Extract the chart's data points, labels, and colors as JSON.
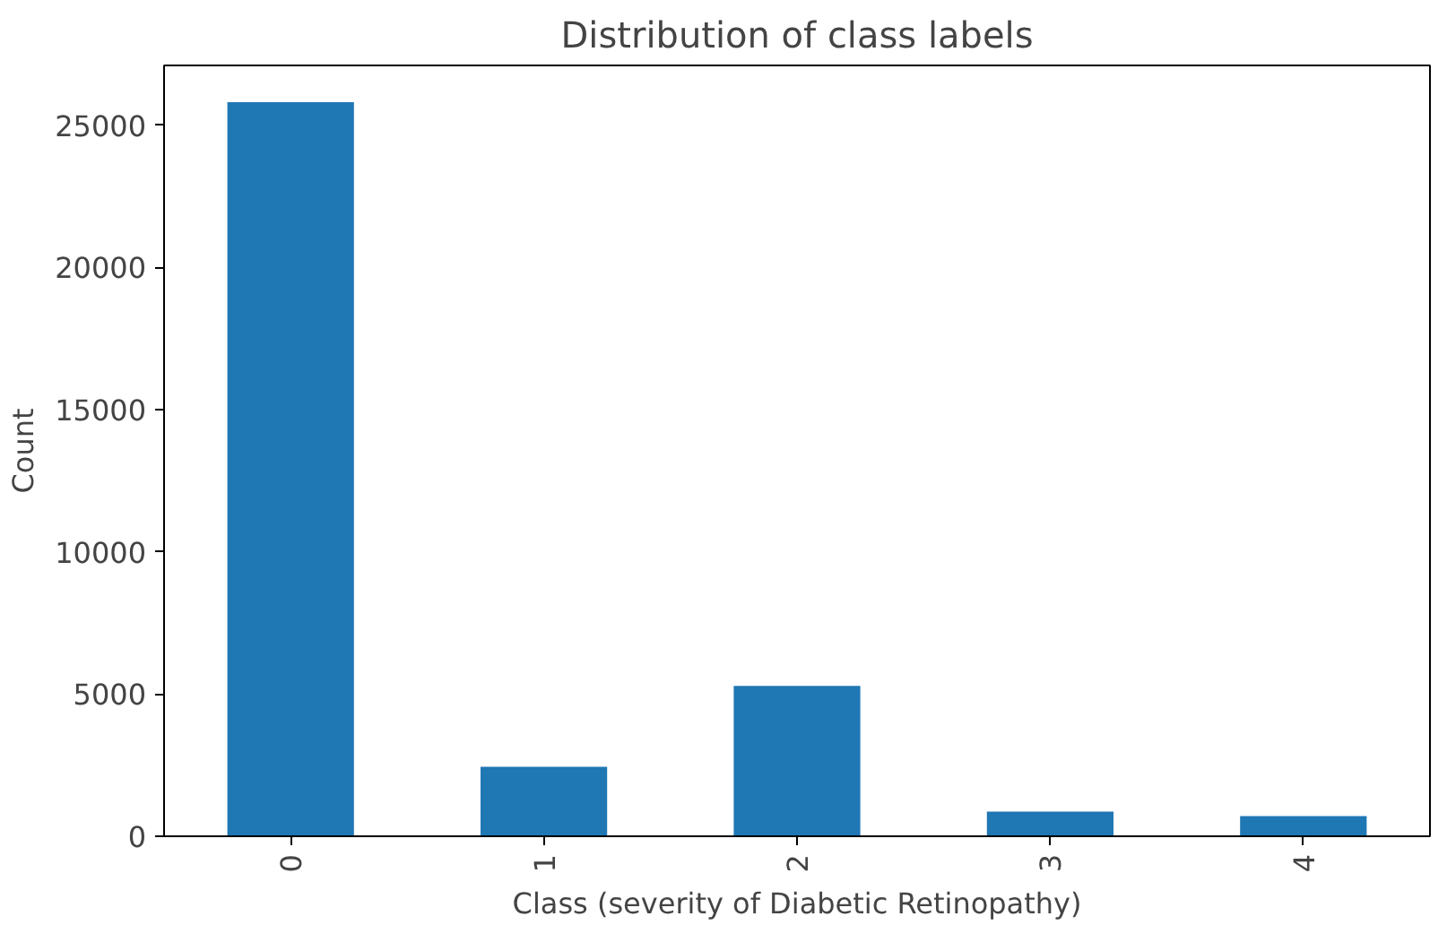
{
  "chart_data": {
    "type": "bar",
    "title": "Distribution of class labels",
    "xlabel": "Class (severity of Diabetic Retinopathy)",
    "ylabel": "Count",
    "categories": [
      "0",
      "1",
      "2",
      "3",
      "4"
    ],
    "values": [
      25810,
      2440,
      5290,
      870,
      710
    ],
    "color": "#1f77b4",
    "ylim": [
      0,
      27100
    ],
    "yticks": [
      0,
      5000,
      10000,
      15000,
      20000,
      25000
    ],
    "grid": false
  }
}
